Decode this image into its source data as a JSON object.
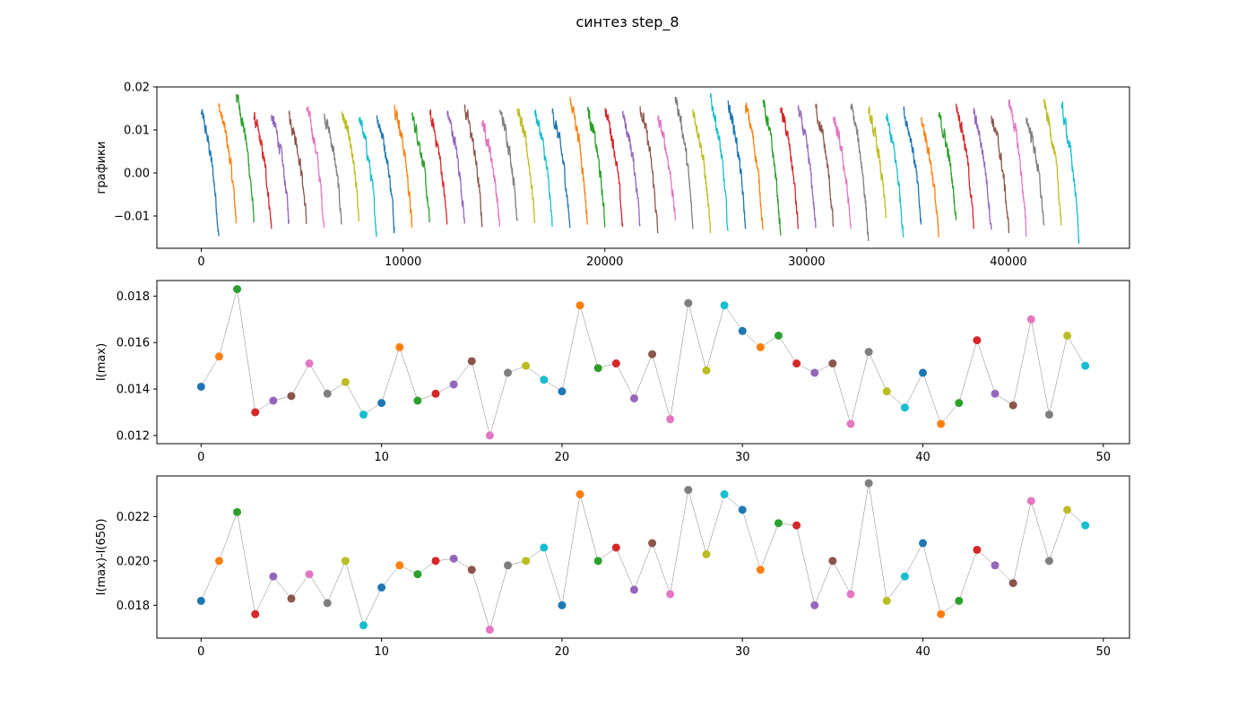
{
  "figure": {
    "title": "синтез step_8"
  },
  "palette": [
    "#1f77b4",
    "#ff7f0e",
    "#2ca02c",
    "#d62728",
    "#9467bd",
    "#8c564b",
    "#e377c2",
    "#7f7f7f",
    "#bcbd22",
    "#17becf"
  ],
  "chart_data": [
    {
      "type": "line",
      "ylabel": "графики",
      "xlim": [
        -2200,
        46000
      ],
      "ylim": [
        -0.0175,
        0.02
      ],
      "xticks": [
        "0",
        "10000",
        "20000",
        "30000",
        "40000"
      ],
      "yticks": [
        "−0.01",
        "0.00",
        "0.01",
        "0.02"
      ],
      "segment_count": 50,
      "segment_length": 870,
      "segment_start_values": [
        0.0141,
        0.0154,
        0.0183,
        0.013,
        0.0135,
        0.0137,
        0.0151,
        0.0138,
        0.0143,
        0.0129,
        0.0134,
        0.0158,
        0.0135,
        0.0138,
        0.0142,
        0.0152,
        0.012,
        0.0147,
        0.015,
        0.0144,
        0.0139,
        0.0176,
        0.0149,
        0.0151,
        0.0136,
        0.0155,
        0.0127,
        0.0177,
        0.0148,
        0.0176,
        0.0165,
        0.0158,
        0.0163,
        0.0151,
        0.0147,
        0.0151,
        0.0125,
        0.0156,
        0.0139,
        0.0132,
        0.0147,
        0.0125,
        0.0134,
        0.0161,
        0.0138,
        0.0133,
        0.017,
        0.0129,
        0.0163,
        0.015
      ],
      "segment_end_values": [
        -0.0147,
        -0.0117,
        -0.0115,
        -0.013,
        -0.0115,
        -0.0117,
        -0.0127,
        -0.0118,
        -0.0112,
        -0.0148,
        -0.0125,
        -0.0127,
        -0.0115,
        -0.012,
        -0.0118,
        -0.012,
        -0.0125,
        -0.0105,
        -0.011,
        -0.0125,
        -0.0128,
        -0.012,
        -0.0125,
        -0.0125,
        -0.012,
        -0.014,
        -0.011,
        -0.013,
        -0.014,
        -0.0135,
        -0.013,
        -0.0132,
        -0.0145,
        -0.013,
        -0.0128,
        -0.0125,
        -0.013,
        -0.0158,
        -0.0105,
        -0.015,
        -0.012,
        -0.015,
        -0.011,
        -0.013,
        -0.0132,
        -0.014,
        -0.0148,
        -0.0122,
        -0.0122,
        -0.0155
      ]
    },
    {
      "type": "scatter",
      "ylabel": "I(max)",
      "xlim": [
        -2.45,
        51.45
      ],
      "ylim": [
        0.01165,
        0.01867
      ],
      "xticks": [
        "0",
        "10",
        "20",
        "30",
        "40",
        "50"
      ],
      "yticks": [
        "0.012",
        "0.014",
        "0.016",
        "0.018"
      ],
      "x": [
        0,
        1,
        2,
        3,
        4,
        5,
        6,
        7,
        8,
        9,
        10,
        11,
        12,
        13,
        14,
        15,
        16,
        17,
        18,
        19,
        20,
        21,
        22,
        23,
        24,
        25,
        26,
        27,
        28,
        29,
        30,
        31,
        32,
        33,
        34,
        35,
        36,
        37,
        38,
        39,
        40,
        41,
        42,
        43,
        44,
        45,
        46,
        47,
        48,
        49
      ],
      "values": [
        0.0141,
        0.0154,
        0.0183,
        0.013,
        0.0135,
        0.0137,
        0.0151,
        0.0138,
        0.0143,
        0.0129,
        0.0134,
        0.0158,
        0.0135,
        0.0138,
        0.0142,
        0.0152,
        0.012,
        0.0147,
        0.015,
        0.0144,
        0.0139,
        0.0176,
        0.0149,
        0.0151,
        0.0136,
        0.0155,
        0.0127,
        0.0177,
        0.0148,
        0.0176,
        0.0165,
        0.0158,
        0.0163,
        0.0151,
        0.0147,
        0.0151,
        0.0125,
        0.0156,
        0.0139,
        0.0132,
        0.0147,
        0.0125,
        0.0134,
        0.0161,
        0.0138,
        0.0133,
        0.017,
        0.0129,
        0.0163,
        0.015
      ]
    },
    {
      "type": "scatter",
      "ylabel": "I(max)-I(650)",
      "xlim": [
        -2.45,
        51.45
      ],
      "ylim": [
        0.01652,
        0.02383
      ],
      "xticks": [
        "0",
        "10",
        "20",
        "30",
        "40",
        "50"
      ],
      "yticks": [
        "0.018",
        "0.020",
        "0.022"
      ],
      "x": [
        0,
        1,
        2,
        3,
        4,
        5,
        6,
        7,
        8,
        9,
        10,
        11,
        12,
        13,
        14,
        15,
        16,
        17,
        18,
        19,
        20,
        21,
        22,
        23,
        24,
        25,
        26,
        27,
        28,
        29,
        30,
        31,
        32,
        33,
        34,
        35,
        36,
        37,
        38,
        39,
        40,
        41,
        42,
        43,
        44,
        45,
        46,
        47,
        48,
        49
      ],
      "values": [
        0.0182,
        0.02,
        0.0222,
        0.0176,
        0.0193,
        0.0183,
        0.0194,
        0.0181,
        0.02,
        0.0171,
        0.0188,
        0.0198,
        0.0194,
        0.02,
        0.0201,
        0.0196,
        0.0169,
        0.0198,
        0.02,
        0.0206,
        0.018,
        0.023,
        0.02,
        0.0206,
        0.0187,
        0.0208,
        0.0185,
        0.0232,
        0.0203,
        0.023,
        0.0223,
        0.0196,
        0.0217,
        0.0216,
        0.018,
        0.02,
        0.0185,
        0.0235,
        0.0182,
        0.0193,
        0.0208,
        0.0176,
        0.0182,
        0.0205,
        0.0198,
        0.019,
        0.0227,
        0.02,
        0.0223,
        0.0216
      ]
    }
  ]
}
